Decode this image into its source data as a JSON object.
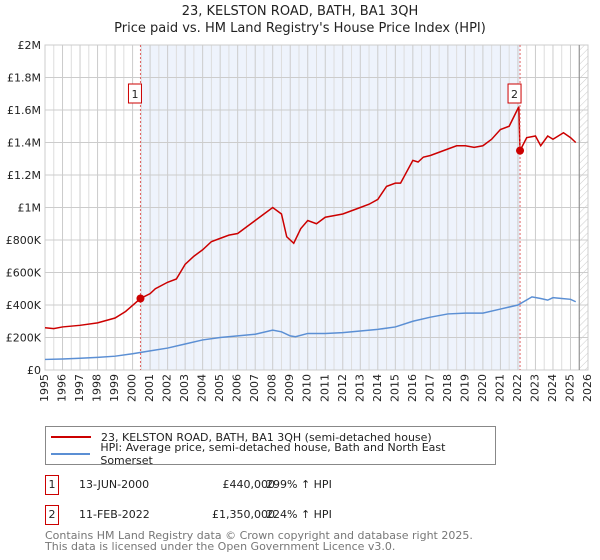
{
  "chart_data": {
    "type": "line",
    "title": "23, KELSTON ROAD, BATH, BA1 3QH",
    "subtitle": "Price paid vs. HM Land Registry's House Price Index (HPI)",
    "xlim": [
      1995,
      2026
    ],
    "ylim": [
      0,
      2000000
    ],
    "x_ticks": [
      "1995",
      "1996",
      "1997",
      "1998",
      "1999",
      "2000",
      "2001",
      "2002",
      "2003",
      "2004",
      "2005",
      "2006",
      "2007",
      "2008",
      "2009",
      "2010",
      "2011",
      "2012",
      "2013",
      "2014",
      "2015",
      "2016",
      "2017",
      "2018",
      "2019",
      "2020",
      "2021",
      "2022",
      "2023",
      "2024",
      "2025",
      "2026"
    ],
    "y_ticks": [
      {
        "v": 0,
        "label": "£0"
      },
      {
        "v": 200000,
        "label": "£200K"
      },
      {
        "v": 400000,
        "label": "£400K"
      },
      {
        "v": 600000,
        "label": "£600K"
      },
      {
        "v": 800000,
        "label": "£800K"
      },
      {
        "v": 1000000,
        "label": "£1M"
      },
      {
        "v": 1200000,
        "label": "£1.2M"
      },
      {
        "v": 1400000,
        "label": "£1.4M"
      },
      {
        "v": 1600000,
        "label": "£1.6M"
      },
      {
        "v": 1800000,
        "label": "£1.8M"
      },
      {
        "v": 2000000,
        "label": "£2M"
      }
    ],
    "series": [
      {
        "name": "23, KELSTON ROAD, BATH, BA1 3QH (semi-detached house)",
        "color": "#cc0000",
        "x": [
          1995,
          1995.5,
          1996,
          1997,
          1998,
          1999,
          1999.6,
          2000.45,
          2001,
          2001.3,
          2002,
          2002.5,
          2003,
          2003.5,
          2004,
          2004.5,
          2005,
          2005.5,
          2006,
          2006.5,
          2007,
          2007.5,
          2008,
          2008.5,
          2008.8,
          2009.2,
          2009.6,
          2010,
          2010.5,
          2011,
          2011.5,
          2012,
          2012.5,
          2013,
          2013.5,
          2014,
          2014.5,
          2015,
          2015.3,
          2016,
          2016.3,
          2016.6,
          2017,
          2017.5,
          2018,
          2018.5,
          2019,
          2019.5,
          2020,
          2020.5,
          2021,
          2021.5,
          2022.05,
          2022.12,
          2022.5,
          2023,
          2023.3,
          2023.7,
          2024,
          2024.3,
          2024.6,
          2025,
          2025.3
        ],
        "values": [
          260000,
          255000,
          265000,
          275000,
          290000,
          320000,
          360000,
          440000,
          470000,
          500000,
          540000,
          560000,
          650000,
          700000,
          740000,
          790000,
          810000,
          830000,
          840000,
          880000,
          920000,
          960000,
          1000000,
          960000,
          820000,
          780000,
          870000,
          920000,
          900000,
          940000,
          950000,
          960000,
          980000,
          1000000,
          1020000,
          1050000,
          1130000,
          1150000,
          1150000,
          1290000,
          1280000,
          1310000,
          1320000,
          1340000,
          1360000,
          1380000,
          1380000,
          1370000,
          1380000,
          1420000,
          1480000,
          1500000,
          1620000,
          1350000,
          1430000,
          1440000,
          1380000,
          1440000,
          1420000,
          1440000,
          1460000,
          1430000,
          1400000
        ]
      },
      {
        "name": "HPI: Average price, semi-detached house, Bath and North East Somerset",
        "color": "#5b8fd4",
        "x": [
          1995,
          1996,
          1997,
          1998,
          1999,
          2000,
          2001,
          2002,
          2003,
          2004,
          2005,
          2006,
          2007,
          2008,
          2008.5,
          2009,
          2009.3,
          2010,
          2011,
          2012,
          2013,
          2014,
          2015,
          2016,
          2017,
          2018,
          2019,
          2020,
          2021,
          2022,
          2022.8,
          2023.3,
          2023.7,
          2024,
          2024.5,
          2025,
          2025.3
        ],
        "values": [
          65000,
          68000,
          72000,
          78000,
          85000,
          100000,
          118000,
          135000,
          160000,
          185000,
          200000,
          210000,
          220000,
          245000,
          235000,
          210000,
          205000,
          225000,
          225000,
          230000,
          240000,
          250000,
          265000,
          300000,
          325000,
          345000,
          350000,
          350000,
          375000,
          400000,
          450000,
          440000,
          430000,
          445000,
          440000,
          435000,
          420000
        ]
      }
    ],
    "annotations": [
      {
        "label": "1",
        "x": 2000.45,
        "value": 440000
      },
      {
        "label": "2",
        "x": 2022.12,
        "value": 1350000
      }
    ],
    "grid": true,
    "legend_placement": "below"
  },
  "legend": [
    {
      "label": "23, KELSTON ROAD, BATH, BA1 3QH (semi-detached house)",
      "color": "#cc0000"
    },
    {
      "label": "HPI: Average price, semi-detached house, Bath and North East Somerset",
      "color": "#5b8fd4"
    }
  ],
  "transactions": [
    {
      "num": "1",
      "date": "13-JUN-2000",
      "price": "£440,000",
      "hpi": "299% ↑ HPI"
    },
    {
      "num": "2",
      "date": "11-FEB-2022",
      "price": "£1,350,000",
      "hpi": "224% ↑ HPI"
    }
  ],
  "footer": {
    "line1": "Contains HM Land Registry data © Crown copyright and database right 2025.",
    "line2": "This data is licensed under the Open Government Licence v3.0."
  }
}
